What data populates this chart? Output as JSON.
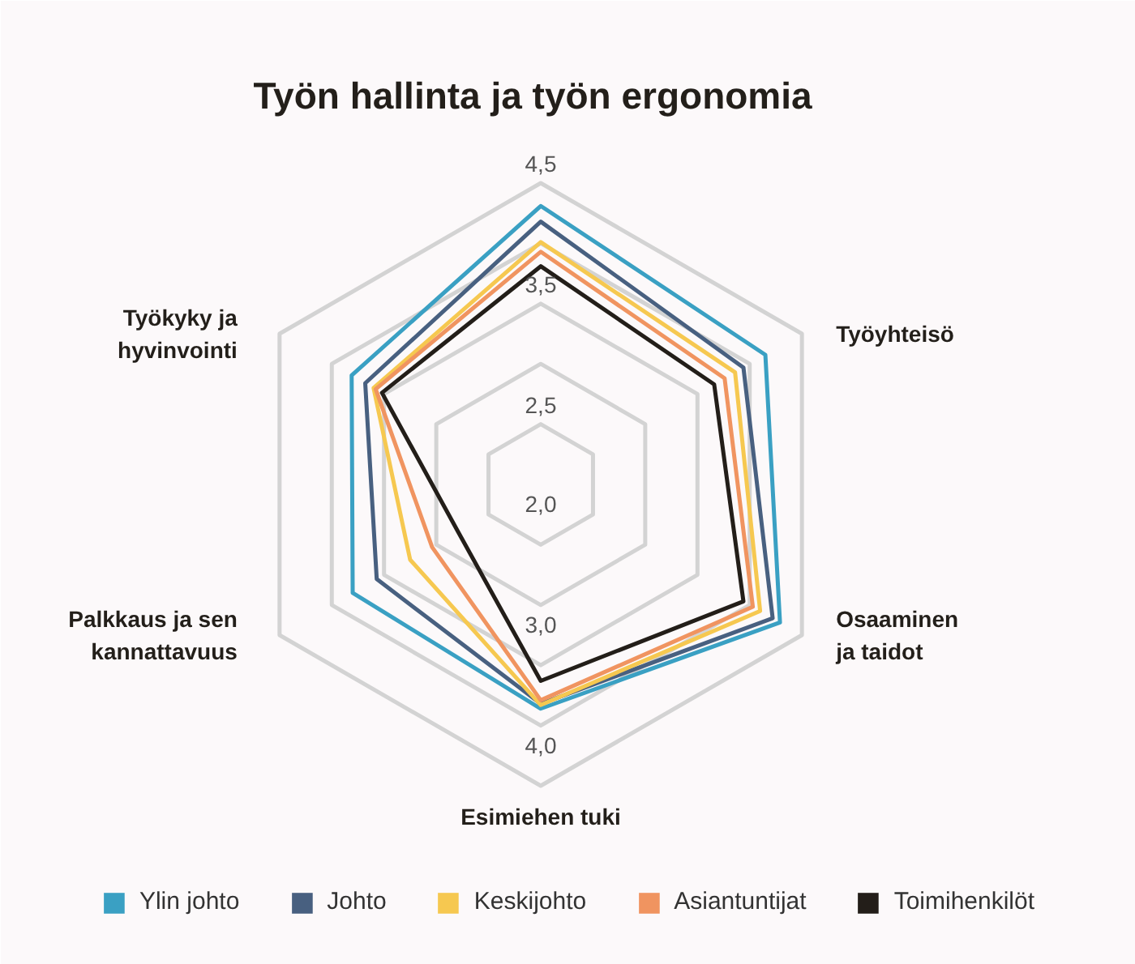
{
  "chart_data": {
    "type": "radar",
    "categories": [
      "Työn hallinta ja työn ergonomia",
      "Työyhteisö",
      "Osaaminen\nja taidot",
      "Esimiehen tuki",
      "Palkkaus ja sen\nkannattavuus",
      "Työkyky ja\nhyvinvointi"
    ],
    "ylim": [
      2.0,
      4.5
    ],
    "yticks": [
      {
        "value": 2.0,
        "label": "2,0"
      },
      {
        "value": 2.5,
        "label": "2,5"
      },
      {
        "value": 3.0,
        "label": "3,0"
      },
      {
        "value": 3.5,
        "label": "3,5"
      },
      {
        "value": 4.0,
        "label": "4,0"
      },
      {
        "value": 4.5,
        "label": "4,5"
      }
    ],
    "grid": true,
    "legend": "bottom",
    "series": [
      {
        "name": "Ylin johto",
        "color": "#3aa0c3",
        "values": [
          4.31,
          4.15,
          4.29,
          3.86,
          3.8,
          3.81
        ]
      },
      {
        "name": "Johto",
        "color": "#486080",
        "values": [
          4.18,
          3.94,
          4.22,
          3.82,
          3.57,
          3.68
        ]
      },
      {
        "name": "Keskijohto",
        "color": "#f6c850",
        "values": [
          4.01,
          3.86,
          4.1,
          3.83,
          3.25,
          3.6
        ]
      },
      {
        "name": "Asiantuntijat",
        "color": "#f09460",
        "values": [
          3.93,
          3.76,
          4.03,
          3.79,
          3.04,
          3.58
        ]
      },
      {
        "name": "Toimihenkilöt",
        "color": "#231e19",
        "values": [
          3.81,
          3.66,
          3.94,
          3.63,
          2.79,
          3.52
        ]
      }
    ]
  }
}
